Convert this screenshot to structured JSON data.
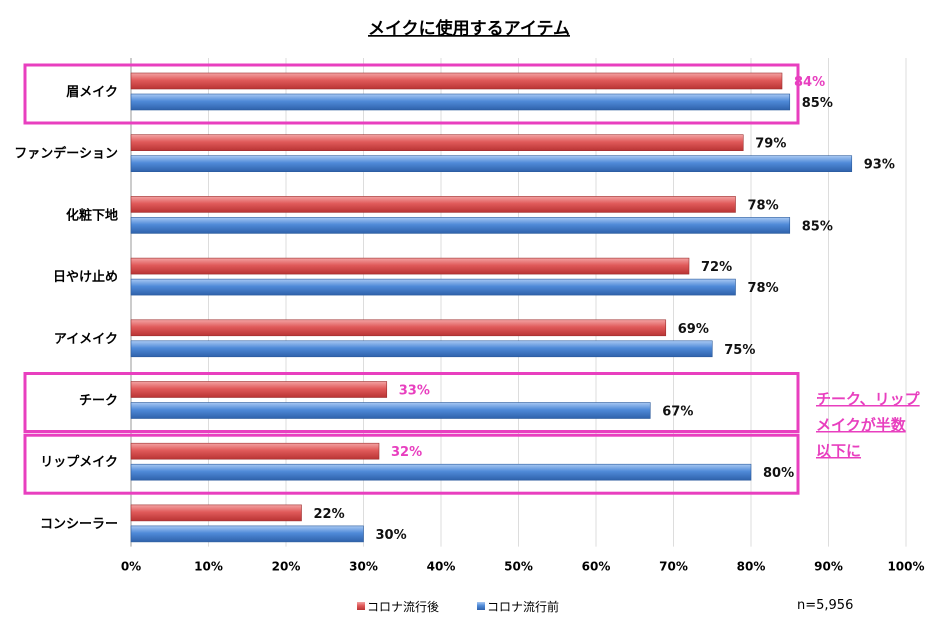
{
  "chart_data": {
    "type": "bar",
    "orientation": "horizontal",
    "title": "メイクに使用するアイテム",
    "categories": [
      "眉メイク",
      "ファンデーション",
      "化粧下地",
      "日やけ止め",
      "アイメイク",
      "チーク",
      "リップメイク",
      "コンシーラー"
    ],
    "series": [
      {
        "name": "コロナ流行後",
        "values": [
          84,
          79,
          78,
          72,
          69,
          33,
          32,
          22
        ],
        "color": "#e05050"
      },
      {
        "name": "コロナ流行前",
        "values": [
          85,
          93,
          85,
          78,
          75,
          67,
          80,
          30
        ],
        "color": "#4a86d8"
      }
    ],
    "value_labels": {
      "after": [
        "84%",
        "79%",
        "78%",
        "72%",
        "69%",
        "33%",
        "32%",
        "22%"
      ],
      "before": [
        "85%",
        "93%",
        "85%",
        "78%",
        "75%",
        "67%",
        "80%",
        "30%"
      ]
    },
    "xlim": [
      0,
      100
    ],
    "x_ticks": [
      "0%",
      "10%",
      "20%",
      "30%",
      "40%",
      "50%",
      "60%",
      "70%",
      "80%",
      "90%",
      "100%"
    ],
    "grid": true,
    "legend_position": "bottom",
    "highlighted_categories": [
      "眉メイク",
      "チーク",
      "リップメイク"
    ],
    "highlight_color": "#e83fbf",
    "annotation_lines": [
      "チーク、リップ",
      "メイクが半数",
      "以下に"
    ],
    "sample_note": "n=5,956"
  }
}
